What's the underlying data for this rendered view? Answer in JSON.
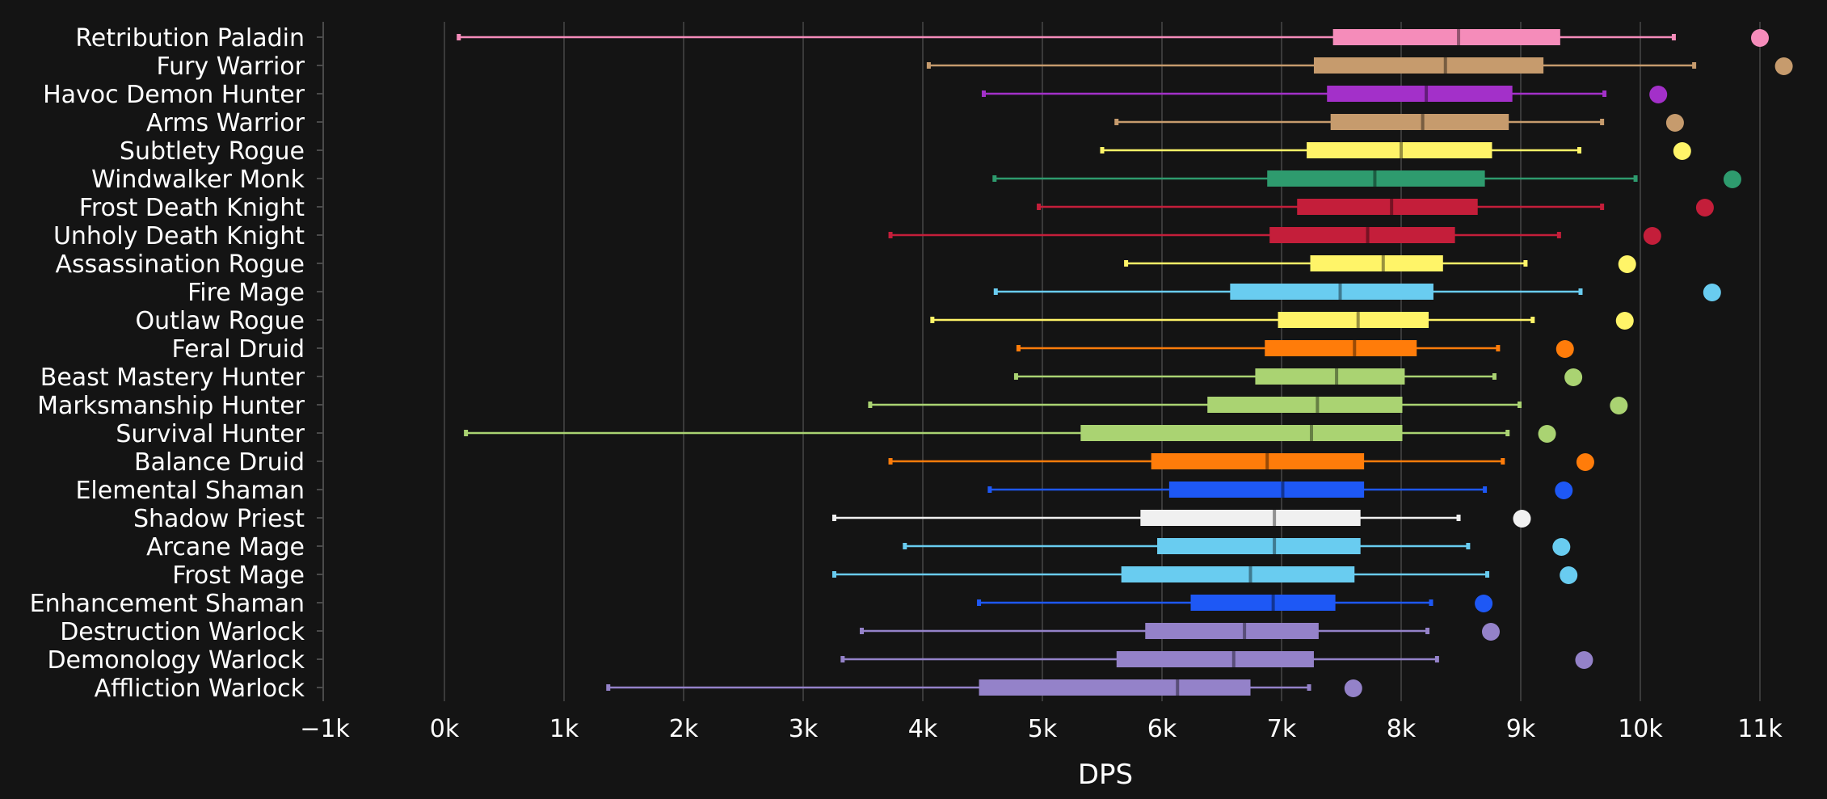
{
  "chart_data": {
    "type": "boxplot",
    "title": "",
    "xlabel": "DPS",
    "ylabel": "",
    "xlim": [
      -1000,
      11500
    ],
    "xticks": [
      -1000,
      0,
      1000,
      2000,
      3000,
      4000,
      5000,
      6000,
      7000,
      8000,
      9000,
      10000,
      11000
    ],
    "xtick_labels": [
      "−1k",
      "0k",
      "1k",
      "2k",
      "3k",
      "4k",
      "5k",
      "6k",
      "7k",
      "8k",
      "9k",
      "10k",
      "11k"
    ],
    "grid": "vertical",
    "series": [
      {
        "name": "Retribution Paladin",
        "color": "#F58CBA",
        "min": 120,
        "q1": 7430,
        "median": 8480,
        "q3": 9330,
        "max": 10280,
        "max_point": 11000
      },
      {
        "name": "Fury Warrior",
        "color": "#C69B6D",
        "min": 4050,
        "q1": 7270,
        "median": 8370,
        "q3": 9190,
        "max": 10450,
        "max_point": 11200
      },
      {
        "name": "Havoc Demon Hunter",
        "color": "#A330C9",
        "min": 4510,
        "q1": 7380,
        "median": 8210,
        "q3": 8930,
        "max": 9700,
        "max_point": 10150
      },
      {
        "name": "Arms Warrior",
        "color": "#C69B6D",
        "min": 5620,
        "q1": 7410,
        "median": 8180,
        "q3": 8900,
        "max": 9680,
        "max_point": 10290
      },
      {
        "name": "Subtlety Rogue",
        "color": "#FFF468",
        "min": 5500,
        "q1": 7210,
        "median": 8000,
        "q3": 8760,
        "max": 9490,
        "max_point": 10350
      },
      {
        "name": "Windwalker Monk",
        "color": "#2E9B6E",
        "min": 4600,
        "q1": 6880,
        "median": 7780,
        "q3": 8700,
        "max": 9960,
        "max_point": 10770
      },
      {
        "name": "Frost Death Knight",
        "color": "#C41E3A",
        "min": 4970,
        "q1": 7130,
        "median": 7920,
        "q3": 8640,
        "max": 9680,
        "max_point": 10540
      },
      {
        "name": "Unholy Death Knight",
        "color": "#C41E3A",
        "min": 3730,
        "q1": 6900,
        "median": 7720,
        "q3": 8450,
        "max": 9320,
        "max_point": 10100
      },
      {
        "name": "Assassination Rogue",
        "color": "#FFF468",
        "min": 5700,
        "q1": 7240,
        "median": 7850,
        "q3": 8350,
        "max": 9040,
        "max_point": 9890
      },
      {
        "name": "Fire Mage",
        "color": "#69CCF0",
        "min": 4610,
        "q1": 6570,
        "median": 7490,
        "q3": 8270,
        "max": 9500,
        "max_point": 10600
      },
      {
        "name": "Outlaw Rogue",
        "color": "#FFF468",
        "min": 4080,
        "q1": 6970,
        "median": 7640,
        "q3": 8230,
        "max": 9100,
        "max_point": 9870
      },
      {
        "name": "Feral Druid",
        "color": "#FF7C0A",
        "min": 4800,
        "q1": 6860,
        "median": 7610,
        "q3": 8130,
        "max": 8810,
        "max_point": 9370
      },
      {
        "name": "Beast Mastery Hunter",
        "color": "#AAD372",
        "min": 4780,
        "q1": 6780,
        "median": 7460,
        "q3": 8030,
        "max": 8780,
        "max_point": 9440
      },
      {
        "name": "Marksmanship Hunter",
        "color": "#AAD372",
        "min": 3560,
        "q1": 6380,
        "median": 7300,
        "q3": 8010,
        "max": 8990,
        "max_point": 9820
      },
      {
        "name": "Survival Hunter",
        "color": "#AAD372",
        "min": 180,
        "q1": 5320,
        "median": 7250,
        "q3": 8010,
        "max": 8890,
        "max_point": 9220
      },
      {
        "name": "Balance Druid",
        "color": "#FF7C0A",
        "min": 3730,
        "q1": 5910,
        "median": 6880,
        "q3": 7690,
        "max": 8850,
        "max_point": 9540
      },
      {
        "name": "Elemental Shaman",
        "color": "#1E58F5",
        "min": 4560,
        "q1": 6060,
        "median": 7010,
        "q3": 7690,
        "max": 8700,
        "max_point": 9360
      },
      {
        "name": "Shadow Priest",
        "color": "#F0F0F0",
        "min": 3260,
        "q1": 5820,
        "median": 6940,
        "q3": 7660,
        "max": 8480,
        "max_point": 9010
      },
      {
        "name": "Arcane Mage",
        "color": "#69CCF0",
        "min": 3850,
        "q1": 5960,
        "median": 6940,
        "q3": 7660,
        "max": 8560,
        "max_point": 9340
      },
      {
        "name": "Frost Mage",
        "color": "#69CCF0",
        "min": 3260,
        "q1": 5660,
        "median": 6740,
        "q3": 7610,
        "max": 8720,
        "max_point": 9400
      },
      {
        "name": "Enhancement Shaman",
        "color": "#1E58F5",
        "min": 4470,
        "q1": 6240,
        "median": 6930,
        "q3": 7450,
        "max": 8250,
        "max_point": 8690
      },
      {
        "name": "Destruction Warlock",
        "color": "#9482C9",
        "min": 3490,
        "q1": 5860,
        "median": 6690,
        "q3": 7310,
        "max": 8220,
        "max_point": 8750
      },
      {
        "name": "Demonology Warlock",
        "color": "#9482C9",
        "min": 3330,
        "q1": 5620,
        "median": 6600,
        "q3": 7270,
        "max": 8300,
        "max_point": 9530
      },
      {
        "name": "Affliction Warlock",
        "color": "#9482C9",
        "min": 1370,
        "q1": 4470,
        "median": 6130,
        "q3": 6740,
        "max": 7230,
        "max_point": 7600
      }
    ]
  }
}
